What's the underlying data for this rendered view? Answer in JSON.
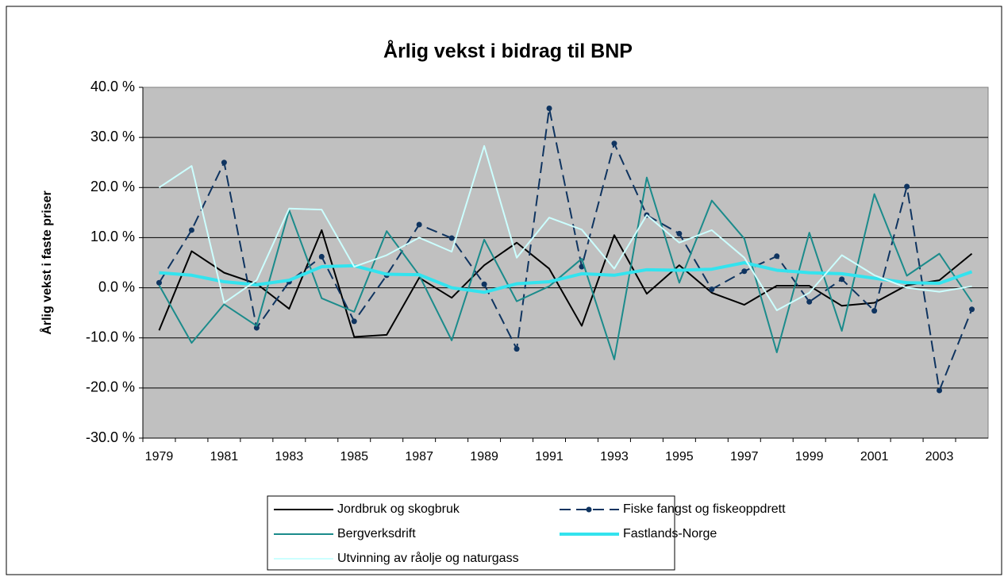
{
  "chart_data": {
    "type": "line",
    "title": "Årlig vekst i bidrag til BNP",
    "y_label": "Årlig vekst i faste priser",
    "categories": [
      "1979",
      null,
      "1981",
      null,
      "1983",
      null,
      "1985",
      null,
      "1987",
      null,
      "1989",
      null,
      "1991",
      null,
      "1993",
      null,
      "1995",
      null,
      "1997",
      null,
      "1999",
      null,
      "2001",
      null,
      "2003",
      null
    ],
    "ylim": [
      -30,
      40
    ],
    "yticks": [
      {
        "value": -30,
        "label": "-30.0 %"
      },
      {
        "value": -20,
        "label": "-20.0 %"
      },
      {
        "value": -10,
        "label": "-10.0 %"
      },
      {
        "value": 0,
        "label": "0.0 %"
      },
      {
        "value": 10,
        "label": "10.0 %"
      },
      {
        "value": 20,
        "label": "20.0 %"
      },
      {
        "value": 30,
        "label": "30.0 %"
      },
      {
        "value": 40,
        "label": "40.0 %"
      }
    ],
    "grid": true,
    "legend": "bottom",
    "series": [
      {
        "name": "Jordbruk og skogbruk",
        "color": "#000000",
        "values": [
          -8.5,
          7.3,
          3,
          0.8,
          -4.2,
          11.5,
          -9.8,
          -9.4,
          2,
          -2,
          4.5,
          9,
          3.8,
          -7.6,
          10.5,
          -1.2,
          4.5,
          -1,
          -3.4,
          0.4,
          0.4,
          -3.6,
          -3,
          0.5,
          1.5,
          6.8
        ]
      },
      {
        "name": "Fiske fangst og fiskeoppdrett",
        "color": "#0f3460",
        "dashed": true,
        "markers": true,
        "values": [
          1,
          11.5,
          25,
          -8,
          1.2,
          6.2,
          -6.7,
          2.5,
          12.6,
          9.9,
          0.7,
          -12.2,
          35.8,
          4.2,
          28.8,
          14.5,
          10.8,
          -0.3,
          3.3,
          6.3,
          -2.8,
          1.7,
          -4.6,
          20.2,
          -20.5,
          -4.3
        ]
      },
      {
        "name": "Bergverksdrift",
        "color": "#1b8b8b",
        "values": [
          0.5,
          -11,
          -3.3,
          -7.6,
          15.5,
          -2.1,
          -4.8,
          11.3,
          2.5,
          -10.5,
          9.6,
          -2.7,
          0.3,
          5.8,
          -14.3,
          22,
          1,
          17.4,
          9.8,
          -12.9,
          11,
          -8.6,
          18.7,
          2.4,
          6.8,
          -2.8
        ]
      },
      {
        "name": "Fastlands-Norge",
        "color": "#33e3ee",
        "values": [
          3,
          2.5,
          1.2,
          0.6,
          1.5,
          4.2,
          4.4,
          2.7,
          2.6,
          0,
          -0.9,
          0.8,
          1.2,
          2.8,
          2.5,
          3.6,
          3.5,
          3.7,
          5,
          3.5,
          3,
          2.8,
          1.9,
          1,
          0.9,
          3.2
        ]
      },
      {
        "name": "Utvinning av råolje og naturgass",
        "color": "#ccffff",
        "values": [
          20,
          24.3,
          -3,
          1.5,
          15.8,
          15.6,
          4.2,
          6.5,
          10,
          7.2,
          28.3,
          6,
          14,
          11.6,
          3.8,
          14.5,
          9,
          11.5,
          6,
          -4.5,
          -1,
          6.5,
          2.5,
          0,
          -0.8,
          0.3
        ]
      }
    ]
  }
}
